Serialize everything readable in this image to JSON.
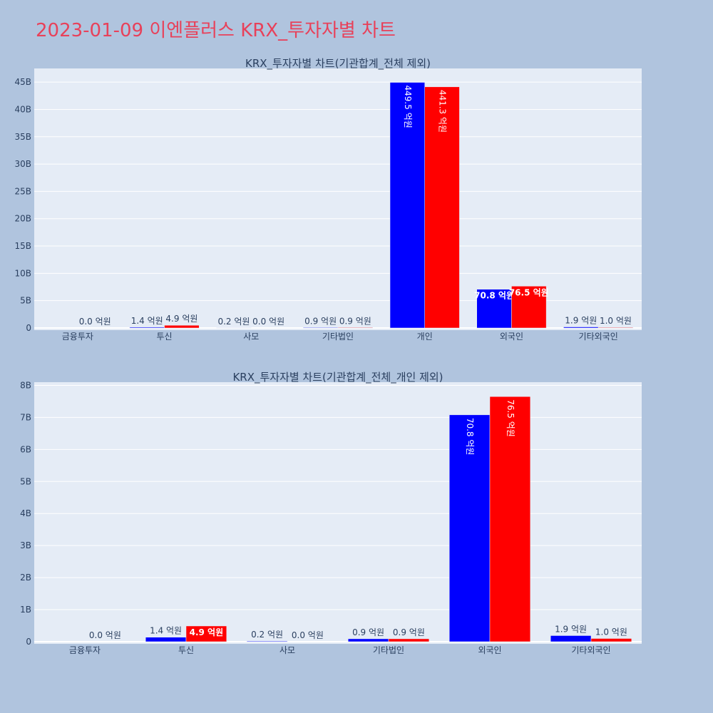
{
  "page": {
    "title": "2023-01-09 이엔플러스 KRX_투자자별 차트"
  },
  "colors": {
    "background": "#b0c4de",
    "plot_bg": "#e5ecf6",
    "series_a": "#0000ff",
    "series_b": "#ff0000",
    "title": "#e8415a"
  },
  "chart_data": [
    {
      "type": "bar",
      "title": "KRX_투자자별 차트(기관합계_전체 제외)",
      "categories": [
        "금융투자",
        "투신",
        "사모",
        "기타법인",
        "개인",
        "외국인",
        "기타외국인"
      ],
      "ylim": [
        0,
        47.5
      ],
      "yticks": [
        0,
        5,
        10,
        15,
        20,
        25,
        30,
        35,
        40,
        45
      ],
      "ytick_labels": [
        "0",
        "5B",
        "10B",
        "15B",
        "20B",
        "25B",
        "30B",
        "35B",
        "40B",
        "45B"
      ],
      "series": [
        {
          "values": [
            0,
            0.14,
            0.02,
            0.09,
            44.95,
            7.08,
            0.19
          ],
          "labels": [
            "",
            "1.4 억원",
            "0.2 억원",
            "0.9 억원",
            "449.5 억원",
            "70.8 억원",
            "1.9 억원"
          ]
        },
        {
          "values": [
            0,
            0.49,
            0,
            0.09,
            44.13,
            7.65,
            0.1
          ],
          "labels": [
            "0.0 억원",
            "4.9 억원",
            "0.0 억원",
            "0.9 억원",
            "441.3 억원",
            "76.5 억원",
            "1.0 억원"
          ]
        }
      ]
    },
    {
      "type": "bar",
      "title": "KRX_투자자별 차트(기관합계_전체_개인 제외)",
      "categories": [
        "금융투자",
        "투신",
        "사모",
        "기타법인",
        "외국인",
        "기타외국인"
      ],
      "ylim": [
        0,
        8.1
      ],
      "yticks": [
        0,
        1,
        2,
        3,
        4,
        5,
        6,
        7,
        8
      ],
      "ytick_labels": [
        "0",
        "1B",
        "2B",
        "3B",
        "4B",
        "5B",
        "6B",
        "7B",
        "8B"
      ],
      "series": [
        {
          "values": [
            0,
            0.14,
            0.02,
            0.09,
            7.08,
            0.19
          ],
          "labels": [
            "",
            "1.4 억원",
            "0.2 억원",
            "0.9 억원",
            "70.8 억원",
            "1.9 억원"
          ]
        },
        {
          "values": [
            0,
            0.49,
            0,
            0.09,
            7.65,
            0.1
          ],
          "labels": [
            "0.0 억원",
            "4.9 억원",
            "0.0 억원",
            "0.9 억원",
            "76.5 억원",
            "1.0 억원"
          ]
        }
      ]
    }
  ]
}
